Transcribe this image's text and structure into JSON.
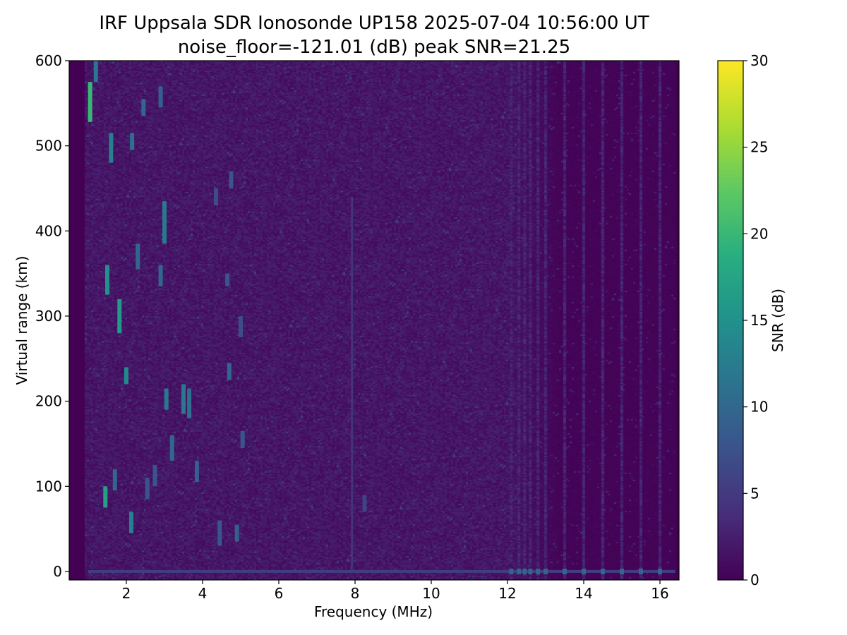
{
  "chart_data": {
    "type": "heatmap",
    "title": "IRF Uppsala SDR Ionosonde UP158 2025-07-04 10:56:00  UT",
    "subtitle": "noise_floor=-121.01 (dB) peak SNR=21.25",
    "xlabel": "Frequency (MHz)",
    "ylabel": "Virtual range (km)",
    "colorbar_label": "SNR (dB)",
    "colormap": "viridis",
    "xlim": [
      0.5,
      16.5
    ],
    "ylim": [
      -10,
      600
    ],
    "clim": [
      0,
      30
    ],
    "xticks": [
      2,
      4,
      6,
      8,
      10,
      12,
      14,
      16
    ],
    "yticks": [
      0,
      100,
      200,
      300,
      400,
      500,
      600
    ],
    "cticks": [
      0,
      5,
      10,
      15,
      20,
      25,
      30
    ],
    "xtick_labels": [
      "2",
      "4",
      "6",
      "8",
      "10",
      "12",
      "14",
      "16"
    ],
    "ytick_labels": [
      "0",
      "100",
      "200",
      "300",
      "400",
      "500",
      "600"
    ],
    "ctick_labels": [
      "0",
      "5",
      "10",
      "15",
      "20",
      "25",
      "30"
    ],
    "noise_floor_db": -121.01,
    "peak_snr_db": 21.25,
    "frequency_range_mhz": [
      0.9,
      16.4
    ],
    "background_snr_db": 1.5,
    "ground_echo": {
      "range_km": 0,
      "freq_start_mhz": 1.0,
      "freq_end_mhz": 16.4,
      "snr_db": 9
    },
    "interference_line": {
      "freq_mhz": 7.92,
      "range_start_km": 0,
      "range_end_km": 440,
      "snr_db": 5
    },
    "echoes": [
      {
        "f": 1.05,
        "r0": 528,
        "r1": 575,
        "snr": 20
      },
      {
        "f": 1.2,
        "r0": 575,
        "r1": 600,
        "snr": 12
      },
      {
        "f": 1.5,
        "r0": 325,
        "r1": 360,
        "snr": 15
      },
      {
        "f": 1.45,
        "r0": 75,
        "r1": 100,
        "snr": 17
      },
      {
        "f": 1.6,
        "r0": 480,
        "r1": 515,
        "snr": 13
      },
      {
        "f": 1.82,
        "r0": 280,
        "r1": 320,
        "snr": 16
      },
      {
        "f": 2.0,
        "r0": 220,
        "r1": 240,
        "snr": 14
      },
      {
        "f": 2.13,
        "r0": 45,
        "r1": 70,
        "snr": 13
      },
      {
        "f": 2.15,
        "r0": 495,
        "r1": 515,
        "snr": 11
      },
      {
        "f": 2.45,
        "r0": 535,
        "r1": 555,
        "snr": 10
      },
      {
        "f": 2.9,
        "r0": 335,
        "r1": 360,
        "snr": 10
      },
      {
        "f": 2.9,
        "r0": 545,
        "r1": 570,
        "snr": 9
      },
      {
        "f": 3.0,
        "r0": 385,
        "r1": 435,
        "snr": 12
      },
      {
        "f": 3.05,
        "r0": 190,
        "r1": 215,
        "snr": 12
      },
      {
        "f": 3.2,
        "r0": 130,
        "r1": 160,
        "snr": 10
      },
      {
        "f": 3.5,
        "r0": 185,
        "r1": 220,
        "snr": 12
      },
      {
        "f": 3.65,
        "r0": 180,
        "r1": 215,
        "snr": 11
      },
      {
        "f": 2.3,
        "r0": 355,
        "r1": 385,
        "snr": 10
      },
      {
        "f": 1.7,
        "r0": 95,
        "r1": 120,
        "snr": 10
      },
      {
        "f": 2.55,
        "r0": 85,
        "r1": 110,
        "snr": 8
      },
      {
        "f": 2.75,
        "r0": 100,
        "r1": 125,
        "snr": 8
      },
      {
        "f": 3.85,
        "r0": 105,
        "r1": 130,
        "snr": 9
      },
      {
        "f": 4.45,
        "r0": 30,
        "r1": 60,
        "snr": 8
      },
      {
        "f": 4.7,
        "r0": 225,
        "r1": 245,
        "snr": 10
      },
      {
        "f": 4.65,
        "r0": 335,
        "r1": 350,
        "snr": 8
      },
      {
        "f": 4.75,
        "r0": 450,
        "r1": 470,
        "snr": 8
      },
      {
        "f": 4.9,
        "r0": 35,
        "r1": 55,
        "snr": 9
      },
      {
        "f": 5.05,
        "r0": 145,
        "r1": 165,
        "snr": 8
      },
      {
        "f": 5.0,
        "r0": 275,
        "r1": 300,
        "snr": 7
      },
      {
        "f": 4.35,
        "r0": 430,
        "r1": 450,
        "snr": 7
      },
      {
        "f": 8.25,
        "r0": 70,
        "r1": 90,
        "snr": 6
      }
    ],
    "column_stripes_mhz": [
      12.1,
      12.3,
      12.45,
      12.6,
      12.8,
      13.0,
      13.5,
      14.0,
      14.5,
      15.0,
      15.5,
      16.0
    ],
    "stripe_ground_snr_db": 10
  }
}
